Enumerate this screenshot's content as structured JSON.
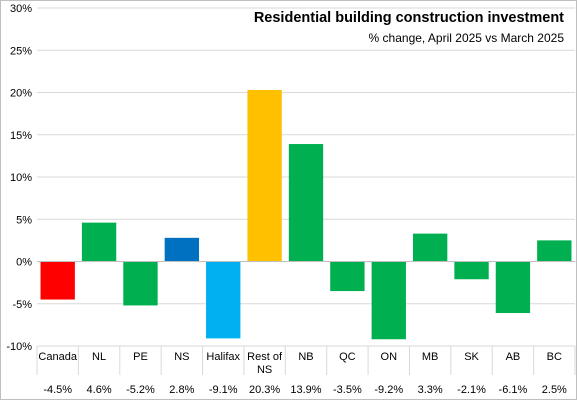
{
  "chart_data": {
    "type": "bar",
    "title": "Residential building construction investment",
    "subtitle": "% change, April 2025 vs March 2025",
    "xlabel": "",
    "ylabel": "",
    "ylim": [
      -10,
      30
    ],
    "y_ticks": [
      "-10%",
      "-5%",
      "0%",
      "5%",
      "10%",
      "15%",
      "20%",
      "25%",
      "30%"
    ],
    "y_tick_values": [
      -10,
      -5,
      0,
      5,
      10,
      15,
      20,
      25,
      30
    ],
    "grid": true,
    "legend": "none",
    "categories": [
      {
        "lines": [
          "Canada"
        ]
      },
      {
        "lines": [
          "NL"
        ]
      },
      {
        "lines": [
          "PE"
        ]
      },
      {
        "lines": [
          "NS"
        ]
      },
      {
        "lines": [
          "Halifax"
        ]
      },
      {
        "lines": [
          "Rest of",
          "NS"
        ]
      },
      {
        "lines": [
          "NB"
        ]
      },
      {
        "lines": [
          "QC"
        ]
      },
      {
        "lines": [
          "ON"
        ]
      },
      {
        "lines": [
          "MB"
        ]
      },
      {
        "lines": [
          "SK"
        ]
      },
      {
        "lines": [
          "AB"
        ]
      },
      {
        "lines": [
          "BC"
        ]
      }
    ],
    "values": [
      -4.5,
      4.6,
      -5.2,
      2.8,
      -9.1,
      20.3,
      13.9,
      -3.5,
      -9.2,
      3.3,
      -2.1,
      -6.1,
      2.5
    ],
    "value_labels": [
      "-4.5%",
      "4.6%",
      "-5.2%",
      "2.8%",
      "-9.1%",
      "20.3%",
      "13.9%",
      "-3.5%",
      "-9.2%",
      "3.3%",
      "-2.1%",
      "-6.1%",
      "2.5%"
    ],
    "colors": [
      "#ff0000",
      "#00b050",
      "#00b050",
      "#0070c0",
      "#00b0f0",
      "#ffc000",
      "#00b050",
      "#00b050",
      "#00b050",
      "#00b050",
      "#00b050",
      "#00b050",
      "#00b050"
    ]
  }
}
